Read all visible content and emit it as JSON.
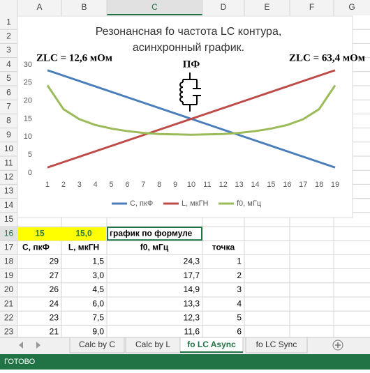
{
  "spreadsheet": {
    "columns": [
      "A",
      "B",
      "C",
      "D",
      "E",
      "F",
      "G"
    ],
    "rows": [
      1,
      2,
      3,
      4,
      5,
      6,
      7,
      8,
      9,
      10,
      11,
      12,
      13,
      14,
      15,
      16,
      17,
      18,
      19,
      20,
      21,
      22,
      23
    ],
    "row16": [
      "15",
      "15,0",
      "график по формуле"
    ],
    "header": [
      "C, пкФ",
      "L, мкГН",
      "f0, мГц",
      "точка"
    ],
    "data": [
      [
        "29",
        "1,5",
        "24,3",
        "1"
      ],
      [
        "27",
        "3,0",
        "17,7",
        "2"
      ],
      [
        "26",
        "4,5",
        "14,9",
        "3"
      ],
      [
        "24",
        "6,0",
        "13,3",
        "4"
      ],
      [
        "23",
        "7,5",
        "12,3",
        "5"
      ],
      [
        "21",
        "9,0",
        "11,6",
        "6"
      ]
    ],
    "tabs": [
      "Calc by C",
      "Calc by L",
      "fo LC Async",
      "fo LC Sync"
    ],
    "status": "ГОТОВО"
  },
  "chart_data": {
    "type": "line",
    "title": [
      "Резонансная fo частота LC контура,",
      "асинхронный график."
    ],
    "annotations": [
      "ZLC = 12,6 мОм",
      "ZLC = 63,4 мОм",
      "ПФ"
    ],
    "categories": [
      1,
      2,
      3,
      4,
      5,
      6,
      7,
      8,
      9,
      10,
      11,
      12,
      13,
      14,
      15,
      16,
      17,
      18,
      19
    ],
    "series": [
      {
        "name": "C, пкФ",
        "color": "#4a7ebb",
        "values": [
          28.5,
          27,
          25.5,
          24,
          22.5,
          21,
          19.5,
          18,
          16.5,
          15,
          13.5,
          12,
          10.5,
          9,
          7.5,
          6,
          4.5,
          3,
          1.5
        ]
      },
      {
        "name": "L, мкГН",
        "color": "#be4b48",
        "values": [
          1.5,
          3,
          4.5,
          6,
          7.5,
          9,
          10.5,
          12,
          13.5,
          15,
          16.5,
          18,
          19.5,
          21,
          22.5,
          24,
          25.5,
          27,
          28.5
        ]
      },
      {
        "name": "f0, мГц",
        "color": "#9bbb59",
        "values": [
          24.3,
          17.7,
          14.9,
          13.3,
          12.3,
          11.6,
          11.1,
          10.8,
          10.7,
          10.6,
          10.7,
          10.8,
          11.1,
          11.6,
          12.3,
          13.3,
          14.9,
          17.7,
          24.3
        ]
      }
    ],
    "ylim": [
      0,
      30
    ],
    "yticks": [
      0,
      5,
      10,
      15,
      20,
      25,
      30
    ],
    "grid": false,
    "legend": "bottom"
  }
}
